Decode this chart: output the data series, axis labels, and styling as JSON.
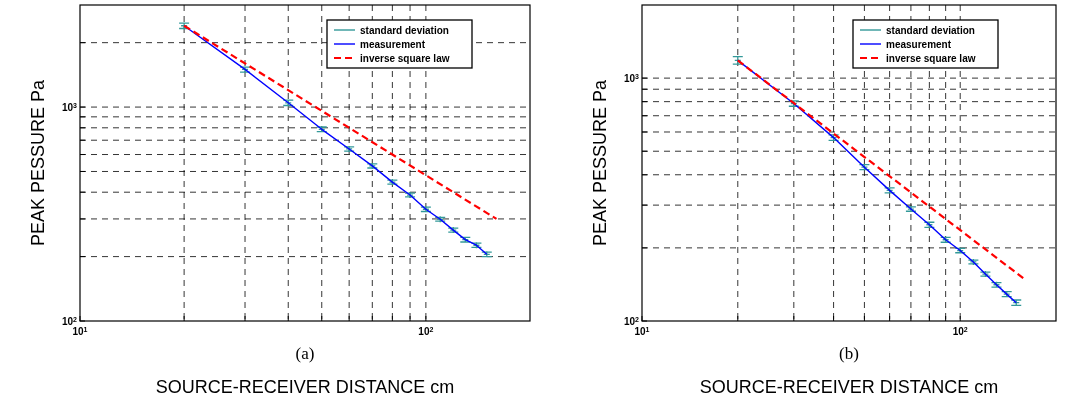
{
  "chart_data": [
    {
      "type": "line",
      "xlabel": "SOURCE-RECEIVER DISTANCE cm",
      "ylabel": "PEAK PESSURE Pa",
      "annotations": [
        "(a)"
      ],
      "log": "xy",
      "grid": true,
      "legend": "top right",
      "xlim": [
        10,
        200
      ],
      "ylim": [
        100,
        3000
      ],
      "xticks": [
        {
          "value": 10,
          "label": "10$^{1}$"
        },
        {
          "value": 20,
          "label": null
        },
        {
          "value": 30,
          "label": null
        },
        {
          "value": 40,
          "label": null
        },
        {
          "value": 50,
          "label": null
        },
        {
          "value": 60,
          "label": null
        },
        {
          "value": 70,
          "label": null
        },
        {
          "value": 80,
          "label": null
        },
        {
          "value": 90,
          "label": null
        },
        {
          "value": 100,
          "label": "10$^{2}$"
        }
      ],
      "yticks": [
        {
          "value": 100,
          "label": "10$^{2}$"
        },
        {
          "value": 200,
          "label": null
        },
        {
          "value": 300,
          "label": null
        },
        {
          "value": 400,
          "label": null
        },
        {
          "value": 500,
          "label": null
        },
        {
          "value": 600,
          "label": null
        },
        {
          "value": 700,
          "label": null
        },
        {
          "value": 800,
          "label": null
        },
        {
          "value": 900,
          "label": null
        },
        {
          "value": 1000,
          "label": "10$^{3}$"
        },
        {
          "value": 2000,
          "label": null
        }
      ],
      "series": [
        {
          "name": "standard deviation",
          "type": "scatter",
          "marker": "cross",
          "color": "#339999",
          "x": [
            20,
            30,
            40,
            50,
            60,
            70,
            80,
            90,
            100,
            110,
            120,
            130,
            140,
            150
          ],
          "values": [
            2400,
            1500,
            1047,
            787,
            637,
            531,
            446,
            388,
            333,
            299,
            266,
            240,
            226,
            205
          ],
          "errors": [
            [
              2330,
              2470
            ],
            [
              1456,
              1537
            ],
            30,
            20,
            15,
            12,
            10,
            8,
            8,
            6,
            6,
            6,
            5,
            5
          ]
        },
        {
          "name": "measurement",
          "line_style": "solid",
          "color": "#0000ff",
          "x": [
            20,
            30,
            40,
            50,
            60,
            70,
            80,
            90,
            100,
            110,
            120,
            130,
            140,
            150
          ],
          "values": [
            2400,
            1500,
            1047,
            787,
            637,
            531,
            446,
            388,
            333,
            299,
            266,
            240,
            226,
            205
          ]
        },
        {
          "name": "inverse square law",
          "line_style": "dashed",
          "color": "#ff0000",
          "x": [
            20,
            160
          ],
          "values": [
            2400,
            300
          ]
        }
      ]
    },
    {
      "type": "line",
      "xlabel": "SOURCE-RECEIVER DISTANCE cm",
      "ylabel": "PEAK PESSURE Pa",
      "annotations": [
        "(b)"
      ],
      "log": "xy",
      "grid": true,
      "legend": "top right",
      "xlim": [
        10,
        200
      ],
      "ylim": [
        100,
        2000
      ],
      "xticks": [
        {
          "value": 10,
          "label": "10$^{1}$"
        },
        {
          "value": 20,
          "label": null
        },
        {
          "value": 30,
          "label": null
        },
        {
          "value": 40,
          "label": null
        },
        {
          "value": 50,
          "label": null
        },
        {
          "value": 60,
          "label": null
        },
        {
          "value": 70,
          "label": null
        },
        {
          "value": 80,
          "label": null
        },
        {
          "value": 90,
          "label": null
        },
        {
          "value": 100,
          "label": "10$^{2}$"
        }
      ],
      "yticks": [
        {
          "value": 100,
          "label": "10$^{2}$"
        },
        {
          "value": 200,
          "label": null
        },
        {
          "value": 300,
          "label": null
        },
        {
          "value": 400,
          "label": null
        },
        {
          "value": 500,
          "label": null
        },
        {
          "value": 600,
          "label": null
        },
        {
          "value": 700,
          "label": null
        },
        {
          "value": 800,
          "label": null
        },
        {
          "value": 900,
          "label": null
        },
        {
          "value": 1000,
          "label": "10$^{3}$"
        }
      ],
      "series": [
        {
          "name": "standard deviation",
          "type": "scatter",
          "marker": "cross",
          "color": "#339999",
          "x": [
            20,
            30,
            40,
            50,
            60,
            70,
            80,
            90,
            100,
            110,
            120,
            130,
            140,
            150
          ],
          "values": [
            1183,
            786,
            569,
            430,
            345,
            289,
            249,
            216,
            195,
            175,
            156,
            141,
            129,
            119
          ],
          "errors": [
            [
              1142,
              1225
            ],
            20,
            15,
            10,
            8,
            6,
            6,
            5,
            4,
            3,
            3,
            3,
            3,
            3
          ]
        },
        {
          "name": "measurement",
          "line_style": "solid",
          "color": "#0000ff",
          "x": [
            20,
            30,
            40,
            50,
            60,
            70,
            80,
            90,
            100,
            110,
            120,
            130,
            140,
            150
          ],
          "values": [
            1183,
            786,
            569,
            430,
            345,
            289,
            249,
            216,
            195,
            175,
            156,
            141,
            129,
            119
          ]
        },
        {
          "name": "inverse square law",
          "line_style": "dashed",
          "color": "#ff0000",
          "x": [
            20,
            160
          ],
          "values": [
            1183,
            148
          ]
        }
      ]
    }
  ]
}
